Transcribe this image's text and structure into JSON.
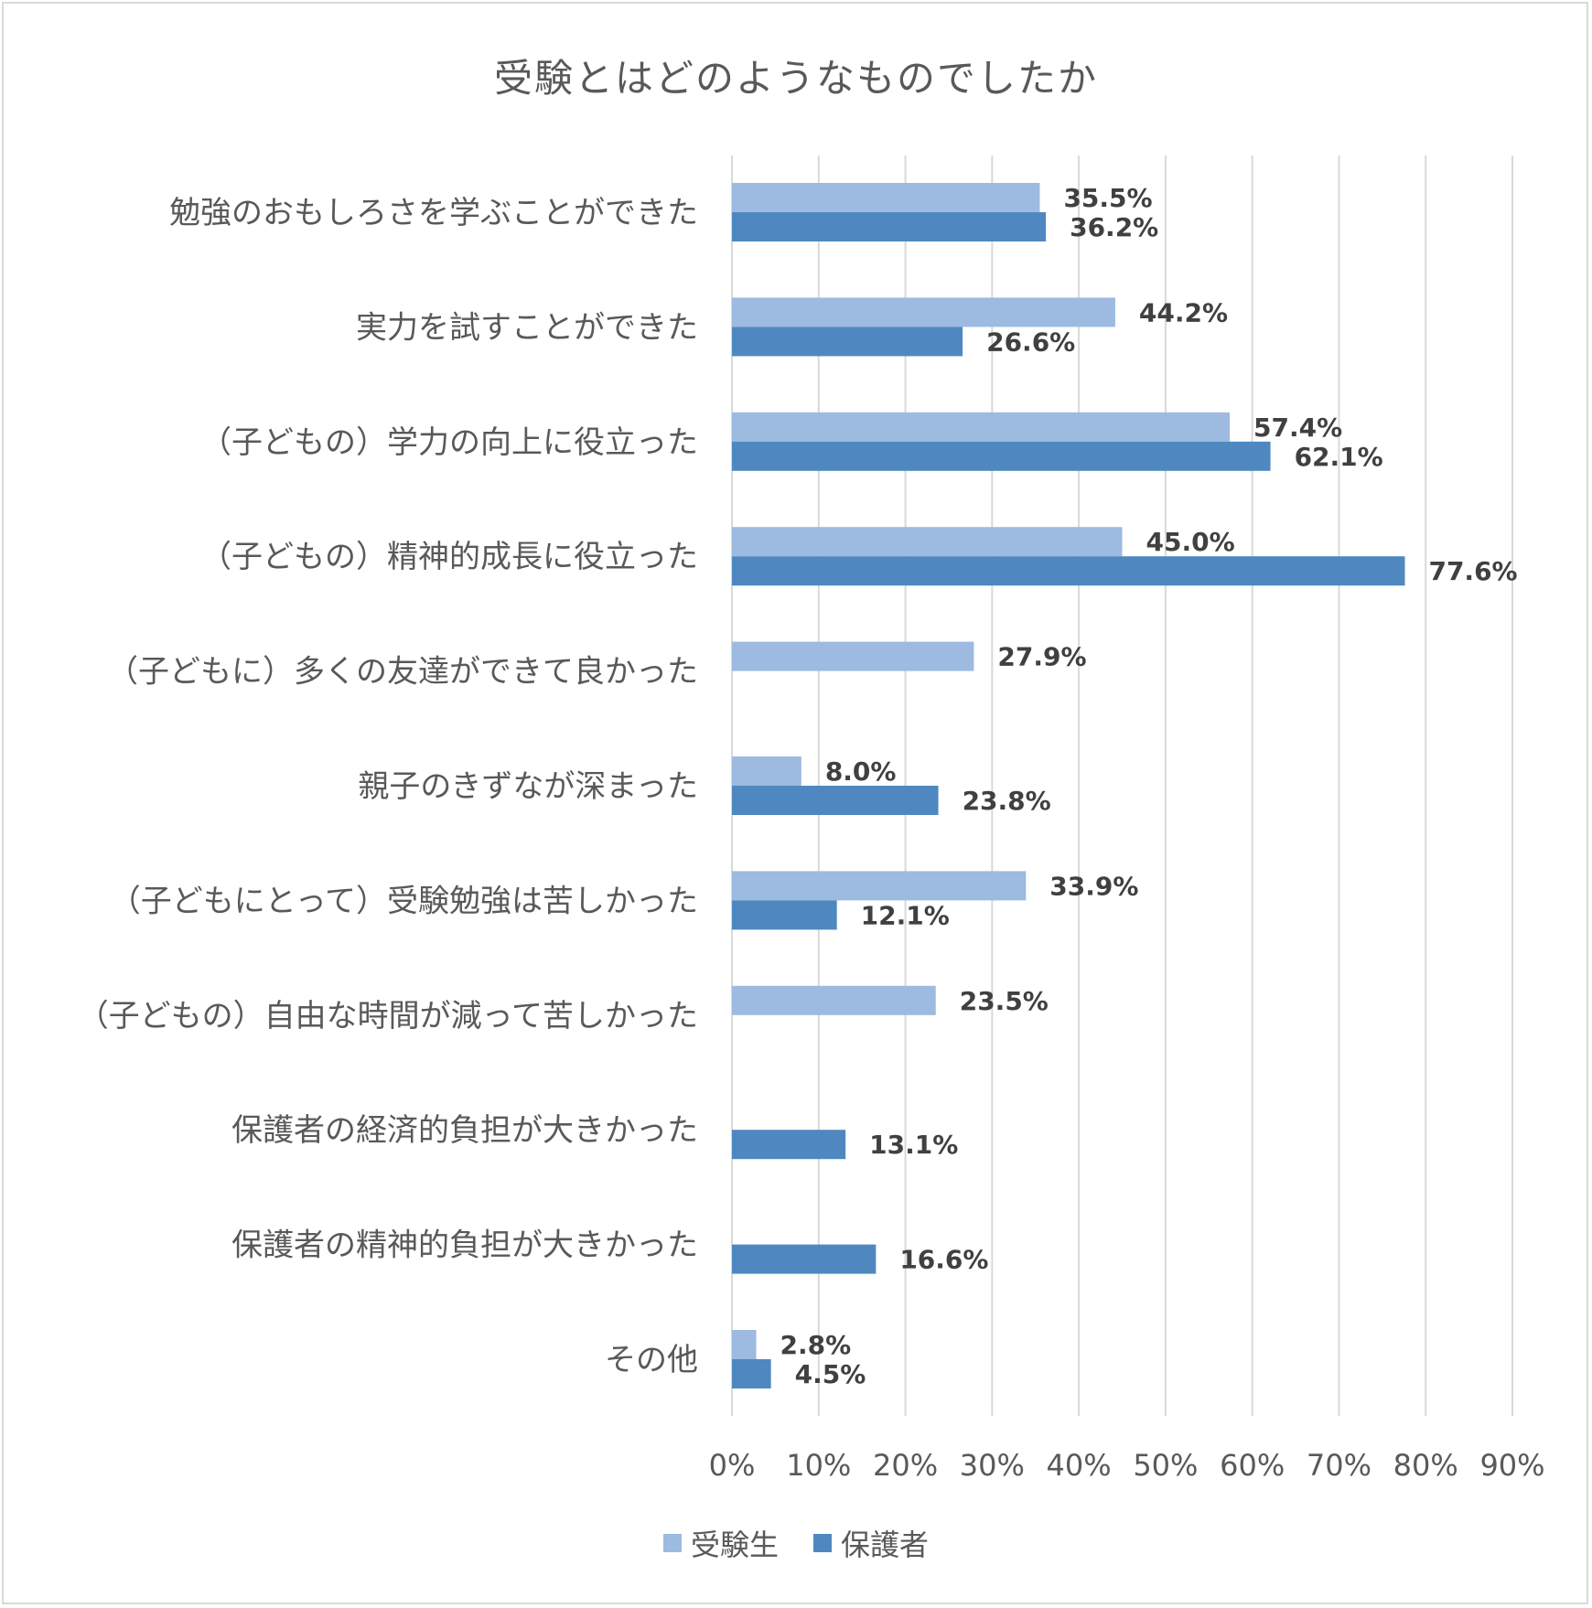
{
  "chart_data": {
    "type": "bar",
    "orientation": "horizontal",
    "title": "受験とはどのようなものでしたか",
    "categories": [
      "勉強のおもしろさを学ぶことができた",
      "実力を試すことができた",
      "（子どもの）学力の向上に役立った",
      "（子どもの）精神的成長に役立った",
      "（子どもに）多くの友達ができて良かった",
      "親子のきずなが深まった",
      "（子どもにとって）受験勉強は苦しかった",
      "（子どもの）自由な時間が減って苦しかった",
      "保護者の経済的負担が大きかった",
      "保護者の精神的負担が大きかった",
      "その他"
    ],
    "series": [
      {
        "name": "受験生",
        "color": "#9dbae0",
        "values": [
          35.5,
          44.2,
          57.4,
          45.0,
          27.9,
          8.0,
          33.9,
          23.5,
          null,
          null,
          2.8
        ],
        "labels": [
          "35.5%",
          "44.2%",
          "57.4%",
          "45.0%",
          "27.9%",
          "8.0%",
          "33.9%",
          "23.5%",
          "",
          "",
          "2.8%"
        ]
      },
      {
        "name": "保護者",
        "color": "#4f88c0",
        "values": [
          36.2,
          26.6,
          62.1,
          77.6,
          null,
          23.8,
          12.1,
          null,
          13.1,
          16.6,
          4.5
        ],
        "labels": [
          "36.2%",
          "26.6%",
          "62.1%",
          "77.6%",
          "",
          "23.8%",
          "12.1%",
          "",
          "13.1%",
          "16.6%",
          "4.5%"
        ]
      }
    ],
    "xlim": [
      0,
      90
    ],
    "xticks": [
      0,
      10,
      20,
      30,
      40,
      50,
      60,
      70,
      80,
      90
    ],
    "xtick_labels": [
      "0%",
      "10%",
      "20%",
      "30%",
      "40%",
      "50%",
      "60%",
      "70%",
      "80%",
      "90%"
    ],
    "gridlines": "vertical",
    "legend_position": "bottom",
    "colors": {
      "gridline": "#d9d9d9",
      "text": "#595959",
      "data_label": "#404040"
    }
  }
}
